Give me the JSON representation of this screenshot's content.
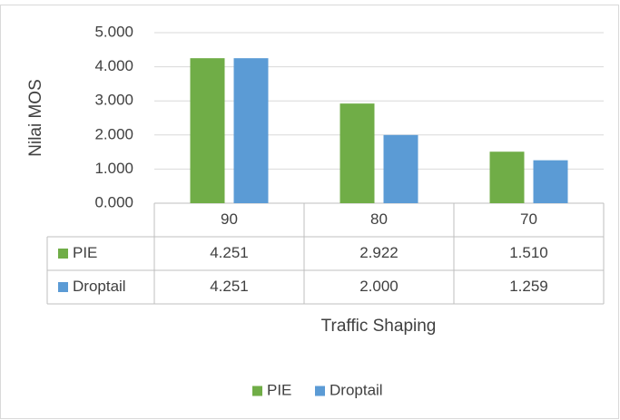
{
  "chart_data": {
    "type": "bar",
    "categories": [
      "90",
      "80",
      "70"
    ],
    "series": [
      {
        "name": "PIE",
        "color": "#70ad47",
        "values": [
          4.251,
          2.922,
          1.51
        ],
        "value_labels": [
          "4.251",
          "2.922",
          "1.510"
        ]
      },
      {
        "name": "Droptail",
        "color": "#5b9bd5",
        "values": [
          4.251,
          2.0,
          1.259
        ],
        "value_labels": [
          "4.251",
          "2.000",
          "1.259"
        ]
      }
    ],
    "ylabel": "Nilai MOS",
    "xlabel": "Traffic Shaping",
    "ylim": [
      0,
      5
    ],
    "yticks": [
      {
        "value": 0,
        "label": "0.000"
      },
      {
        "value": 1,
        "label": "1.000"
      },
      {
        "value": 2,
        "label": "2.000"
      },
      {
        "value": 3,
        "label": "3.000"
      },
      {
        "value": 4,
        "label": "4.000"
      },
      {
        "value": 5,
        "label": "5.000"
      }
    ],
    "grid": true,
    "legend": "bottom"
  }
}
